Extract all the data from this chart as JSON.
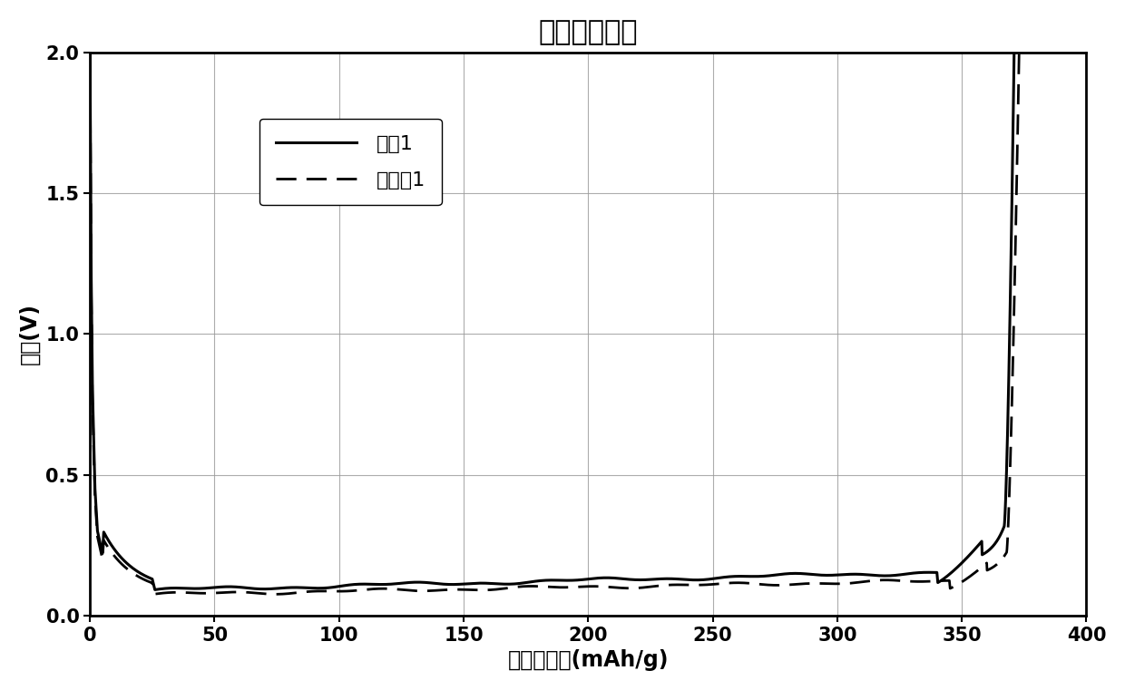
{
  "title": "比容量曲线图",
  "xlabel": "石墨比容量(mAh/g)",
  "ylabel": "电压(V)",
  "xlim": [
    0,
    400
  ],
  "ylim": [
    0,
    2.0
  ],
  "xticks": [
    0,
    50,
    100,
    150,
    200,
    250,
    300,
    350,
    400
  ],
  "yticks": [
    0.0,
    0.5,
    1.0,
    1.5,
    2.0
  ],
  "legend1": "对比1",
  "legend2": "实施例1",
  "line1_color": "#000000",
  "line2_color": "#000000",
  "background_color": "#ffffff",
  "title_fontsize": 22,
  "label_fontsize": 17,
  "tick_fontsize": 15,
  "legend_fontsize": 16
}
